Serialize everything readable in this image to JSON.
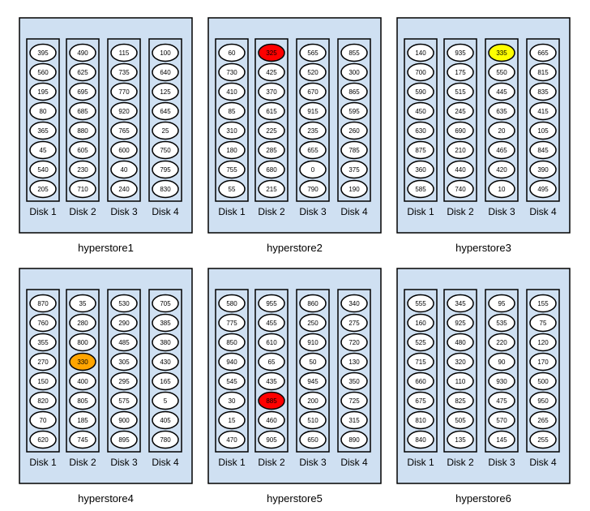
{
  "colors": {
    "background": "#ffffff",
    "store_fill": "#cfe0f2",
    "store_stroke": "#000000",
    "disk_fill": "#cfe0f2",
    "slot_fill": "#ffffff",
    "slot_stroke": "#000000",
    "highlight_red": "#ff0000",
    "highlight_yellow": "#ffff00",
    "highlight_orange": "#ffa500"
  },
  "icon": "storage-node",
  "stores": [
    {
      "name": "hyperstore1",
      "disks": [
        {
          "label": "Disk 1",
          "slots": [
            "395",
            "560",
            "195",
            "80",
            "365",
            "45",
            "540",
            "205"
          ]
        },
        {
          "label": "Disk 2",
          "slots": [
            "490",
            "625",
            "695",
            "685",
            "880",
            "605",
            "230",
            "710"
          ]
        },
        {
          "label": "Disk 3",
          "slots": [
            "115",
            "735",
            "770",
            "920",
            "765",
            "600",
            "40",
            "240"
          ]
        },
        {
          "label": "Disk 4",
          "slots": [
            "100",
            "640",
            "125",
            "645",
            "25",
            "750",
            "795",
            "830"
          ]
        }
      ],
      "highlights": []
    },
    {
      "name": "hyperstore2",
      "disks": [
        {
          "label": "Disk 1",
          "slots": [
            "60",
            "730",
            "410",
            "85",
            "310",
            "180",
            "755",
            "55"
          ]
        },
        {
          "label": "Disk 2",
          "slots": [
            "325",
            "425",
            "370",
            "615",
            "225",
            "285",
            "680",
            "215"
          ]
        },
        {
          "label": "Disk 3",
          "slots": [
            "565",
            "520",
            "670",
            "915",
            "235",
            "655",
            "0",
            "790"
          ]
        },
        {
          "label": "Disk 4",
          "slots": [
            "855",
            "300",
            "865",
            "595",
            "260",
            "785",
            "375",
            "190"
          ]
        }
      ],
      "highlights": [
        {
          "disk": 1,
          "slot": 0,
          "color": "red"
        }
      ]
    },
    {
      "name": "hyperstore3",
      "disks": [
        {
          "label": "Disk 1",
          "slots": [
            "140",
            "700",
            "590",
            "450",
            "630",
            "875",
            "360",
            "585"
          ]
        },
        {
          "label": "Disk 2",
          "slots": [
            "935",
            "175",
            "515",
            "245",
            "690",
            "210",
            "440",
            "740"
          ]
        },
        {
          "label": "Disk 3",
          "slots": [
            "335",
            "550",
            "445",
            "635",
            "20",
            "465",
            "420",
            "10"
          ]
        },
        {
          "label": "Disk 4",
          "slots": [
            "665",
            "815",
            "835",
            "415",
            "105",
            "845",
            "390",
            "495"
          ]
        }
      ],
      "highlights": [
        {
          "disk": 2,
          "slot": 0,
          "color": "yellow"
        }
      ]
    },
    {
      "name": "hyperstore4",
      "disks": [
        {
          "label": "Disk 1",
          "slots": [
            "870",
            "760",
            "355",
            "270",
            "150",
            "820",
            "70",
            "620"
          ]
        },
        {
          "label": "Disk 2",
          "slots": [
            "35",
            "280",
            "800",
            "330",
            "400",
            "805",
            "185",
            "745"
          ]
        },
        {
          "label": "Disk 3",
          "slots": [
            "530",
            "290",
            "485",
            "305",
            "295",
            "575",
            "900",
            "895"
          ]
        },
        {
          "label": "Disk 4",
          "slots": [
            "705",
            "385",
            "380",
            "430",
            "165",
            "5",
            "405",
            "780"
          ]
        }
      ],
      "highlights": [
        {
          "disk": 1,
          "slot": 3,
          "color": "orange"
        }
      ]
    },
    {
      "name": "hyperstore5",
      "disks": [
        {
          "label": "Disk 1",
          "slots": [
            "580",
            "775",
            "850",
            "940",
            "545",
            "30",
            "15",
            "470"
          ]
        },
        {
          "label": "Disk 2",
          "slots": [
            "955",
            "455",
            "610",
            "65",
            "435",
            "885",
            "460",
            "905"
          ]
        },
        {
          "label": "Disk 3",
          "slots": [
            "860",
            "250",
            "910",
            "50",
            "945",
            "200",
            "510",
            "650"
          ]
        },
        {
          "label": "Disk 4",
          "slots": [
            "340",
            "275",
            "720",
            "130",
            "350",
            "725",
            "315",
            "890"
          ]
        }
      ],
      "highlights": [
        {
          "disk": 1,
          "slot": 5,
          "color": "red"
        }
      ]
    },
    {
      "name": "hyperstore6",
      "disks": [
        {
          "label": "Disk 1",
          "slots": [
            "555",
            "160",
            "525",
            "715",
            "660",
            "675",
            "810",
            "840"
          ]
        },
        {
          "label": "Disk 2",
          "slots": [
            "345",
            "925",
            "480",
            "320",
            "110",
            "825",
            "505",
            "135"
          ]
        },
        {
          "label": "Disk 3",
          "slots": [
            "95",
            "535",
            "220",
            "90",
            "930",
            "475",
            "570",
            "145"
          ]
        },
        {
          "label": "Disk 4",
          "slots": [
            "155",
            "75",
            "120",
            "170",
            "500",
            "950",
            "265",
            "255"
          ]
        }
      ],
      "highlights": []
    }
  ]
}
